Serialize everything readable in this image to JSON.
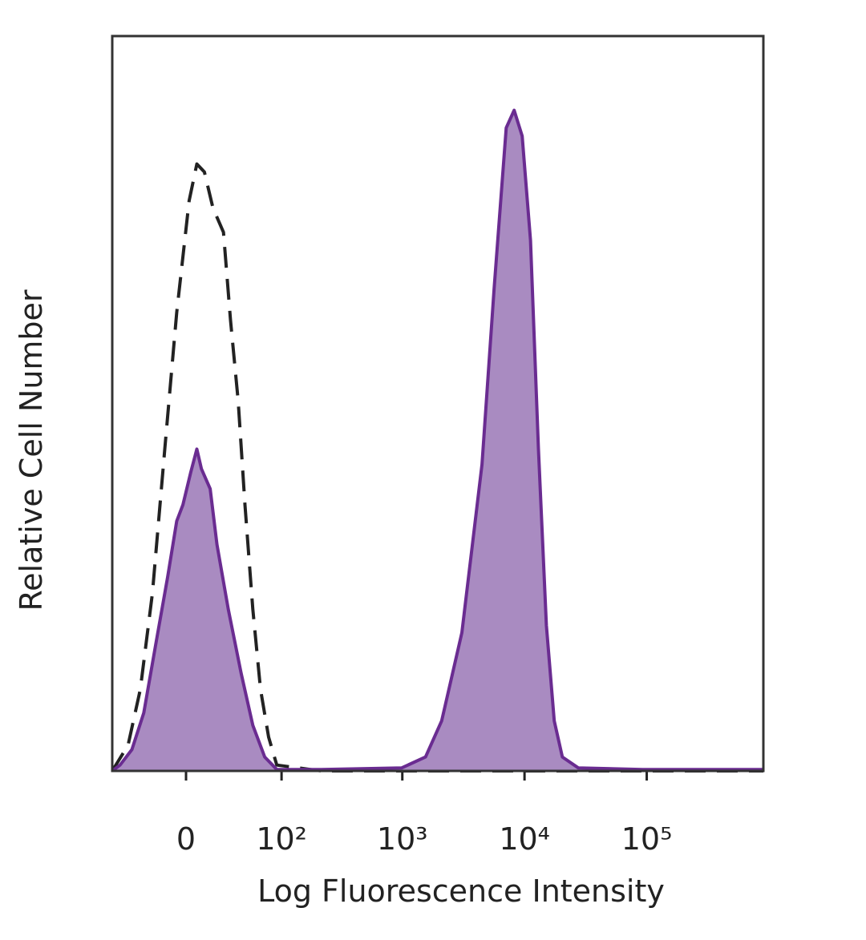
{
  "chart_data": {
    "type": "area",
    "xlabel": "Log Fluorescence Intensity",
    "ylabel": "Relative Cell Number",
    "xscale": "asinh",
    "xlim": [
      -64,
      900000
    ],
    "ylim": [
      0,
      100
    ],
    "xticks": [
      0,
      {
        "value": 100,
        "label": "10²"
      },
      {
        "value": 1000,
        "label": "10³"
      },
      {
        "value": 10000,
        "label": "10⁴"
      },
      {
        "value": 100000,
        "label": "10⁵"
      }
    ],
    "series": [
      {
        "color": "#6a2c91",
        "fill": "#a98bc1",
        "dash": false,
        "x": [
          -64,
          -54,
          -41,
          -30,
          -20,
          -12,
          -6,
          -2,
          3,
          7,
          10,
          16,
          21,
          30,
          42,
          55,
          71,
          91,
          215,
          986,
          1550,
          2100,
          3070,
          4490,
          5640,
          7080,
          8230,
          9560,
          11200,
          13000,
          15100,
          17500,
          20400,
          27600,
          92900,
          900000
        ],
        "values": [
          0,
          0.8,
          2.9,
          7.9,
          17.7,
          26.4,
          34.0,
          36.2,
          40.6,
          43.8,
          41.1,
          38.4,
          30.8,
          22.0,
          13.3,
          6.2,
          1.9,
          0.2,
          0.2,
          0.4,
          1.9,
          6.8,
          18.8,
          41.7,
          65.6,
          87.5,
          89.9,
          86.4,
          72.2,
          43.8,
          19.8,
          6.8,
          1.9,
          0.4,
          0.2,
          0.2
        ]
      },
      {
        "color": "#222222",
        "fill": null,
        "dash": true,
        "x": [
          -64,
          -45,
          -33,
          -23,
          -14,
          -6,
          2,
          7,
          12,
          18,
          26,
          32,
          39,
          46,
          55,
          65,
          77,
          91,
          215,
          900000
        ],
        "values": [
          0,
          3.5,
          11.1,
          24.2,
          43.8,
          62.4,
          77.6,
          82.6,
          81.5,
          76.6,
          73.3,
          61.3,
          50.4,
          36.2,
          22.0,
          11.1,
          4.6,
          0.8,
          0,
          0
        ]
      }
    ]
  }
}
